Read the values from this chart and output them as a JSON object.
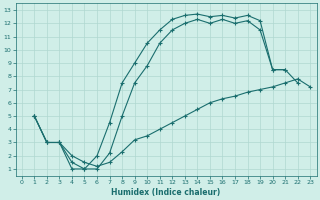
{
  "xlabel": "Humidex (Indice chaleur)",
  "xlim": [
    -0.5,
    23.5
  ],
  "ylim": [
    0.5,
    13.5
  ],
  "xticks": [
    0,
    1,
    2,
    3,
    4,
    5,
    6,
    7,
    8,
    9,
    10,
    11,
    12,
    13,
    14,
    15,
    16,
    17,
    18,
    19,
    20,
    21,
    22,
    23
  ],
  "yticks": [
    1,
    2,
    3,
    4,
    5,
    6,
    7,
    8,
    9,
    10,
    11,
    12,
    13
  ],
  "bg_color": "#d0eee8",
  "line_color": "#1a6e6e",
  "grid_color": "#b0d8d0",
  "line1_x": [
    1,
    2,
    3,
    4,
    5,
    6,
    7,
    8,
    9,
    10,
    11,
    12,
    13,
    14,
    15,
    16,
    17,
    18,
    19,
    20,
    21
  ],
  "line1_y": [
    5,
    3,
    3,
    1,
    1,
    2,
    4.5,
    7.5,
    9,
    10.5,
    11.5,
    12.3,
    12.6,
    12.7,
    12.5,
    12.6,
    12.4,
    12.6,
    12.2,
    8.5,
    8.5
  ],
  "line2_x": [
    1,
    2,
    3,
    4,
    5,
    6,
    7,
    8,
    9,
    10,
    11,
    12,
    13,
    14,
    15,
    16,
    17,
    18,
    19,
    20,
    21,
    22
  ],
  "line2_y": [
    5,
    3,
    3,
    1.5,
    1,
    1,
    2.2,
    5.0,
    7.5,
    8.8,
    10.5,
    11.5,
    12.0,
    12.3,
    12.0,
    12.3,
    12.0,
    12.2,
    11.5,
    8.5,
    8.5,
    7.5
  ],
  "line3_x": [
    1,
    2,
    3,
    4,
    5,
    6,
    7,
    8,
    9,
    10,
    11,
    12,
    13,
    14,
    15,
    16,
    17,
    18,
    19,
    20,
    21,
    22,
    23
  ],
  "line3_y": [
    5,
    3,
    3,
    2,
    1.5,
    1.2,
    1.5,
    2.3,
    3.2,
    3.5,
    4.0,
    4.5,
    5.0,
    5.5,
    6.0,
    6.3,
    6.5,
    6.8,
    7.0,
    7.2,
    7.5,
    7.8,
    7.2
  ]
}
